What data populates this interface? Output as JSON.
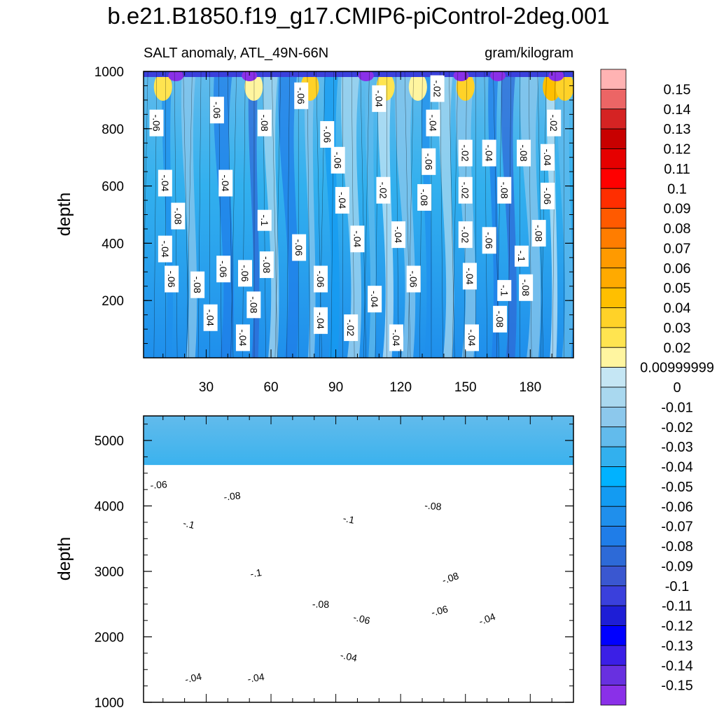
{
  "title": "b.e21.B1850.f19_g17.CMIP6-piControl-2deg.001",
  "chart_data": {
    "type": "heatmap",
    "variable": "SALT anomaly, ATL_49N-66N",
    "units": "gram/kilogram",
    "x_ticks": [
      30,
      60,
      90,
      120,
      150,
      180
    ],
    "xlim": [
      1,
      200
    ],
    "panels": [
      {
        "id": "upper",
        "ylabel": "depth",
        "ylim": [
          1000,
          0
        ],
        "y_ticks": [
          200,
          400,
          600,
          800,
          1000
        ],
        "contour_labels": [
          {
            "x": 47,
            "y": 70,
            "text": "-.04"
          },
          {
            "x": 32,
            "y": 140,
            "text": "-.04"
          },
          {
            "x": 52,
            "y": 185,
            "text": "-.08"
          },
          {
            "x": 83,
            "y": 130,
            "text": "-.04"
          },
          {
            "x": 97,
            "y": 105,
            "text": "-.02"
          },
          {
            "x": 118,
            "y": 70,
            "text": "-.04"
          },
          {
            "x": 108,
            "y": 205,
            "text": "-.04"
          },
          {
            "x": 153,
            "y": 70,
            "text": "-.04"
          },
          {
            "x": 166,
            "y": 135,
            "text": "-.08"
          },
          {
            "x": 14,
            "y": 275,
            "text": "-.06"
          },
          {
            "x": 26,
            "y": 255,
            "text": "-.08"
          },
          {
            "x": 38,
            "y": 310,
            "text": "-.06"
          },
          {
            "x": 48,
            "y": 295,
            "text": "-.06"
          },
          {
            "x": 58,
            "y": 325,
            "text": "-.08"
          },
          {
            "x": 83,
            "y": 275,
            "text": "-.06"
          },
          {
            "x": 126,
            "y": 275,
            "text": "-.06"
          },
          {
            "x": 152,
            "y": 285,
            "text": "-.04"
          },
          {
            "x": 168,
            "y": 235,
            "text": "-.1"
          },
          {
            "x": 178,
            "y": 245,
            "text": "-.08"
          },
          {
            "x": 11,
            "y": 380,
            "text": "-.04"
          },
          {
            "x": 73,
            "y": 385,
            "text": "-.06"
          },
          {
            "x": 100,
            "y": 415,
            "text": "-.04"
          },
          {
            "x": 119,
            "y": 430,
            "text": "-.04"
          },
          {
            "x": 176,
            "y": 355,
            "text": "-.1"
          },
          {
            "x": 150,
            "y": 430,
            "text": "-.02"
          },
          {
            "x": 161,
            "y": 410,
            "text": "-.06"
          },
          {
            "x": 184,
            "y": 435,
            "text": "-.08"
          },
          {
            "x": 17,
            "y": 495,
            "text": "-.08"
          },
          {
            "x": 57,
            "y": 480,
            "text": "-.1"
          },
          {
            "x": 93,
            "y": 550,
            "text": "-.04"
          },
          {
            "x": 131,
            "y": 560,
            "text": "-.08"
          },
          {
            "x": 112,
            "y": 585,
            "text": "-.02"
          },
          {
            "x": 150,
            "y": 585,
            "text": "-.02"
          },
          {
            "x": 168,
            "y": 585,
            "text": "-.08"
          },
          {
            "x": 188,
            "y": 565,
            "text": "-.06"
          },
          {
            "x": 11,
            "y": 610,
            "text": "-.04"
          },
          {
            "x": 39,
            "y": 610,
            "text": "-.04"
          },
          {
            "x": 91,
            "y": 690,
            "text": "-.06"
          },
          {
            "x": 133,
            "y": 685,
            "text": "-.06"
          },
          {
            "x": 150,
            "y": 715,
            "text": "-.02"
          },
          {
            "x": 161,
            "y": 715,
            "text": "-.04"
          },
          {
            "x": 177,
            "y": 715,
            "text": "-.08"
          },
          {
            "x": 188,
            "y": 700,
            "text": "-.04"
          },
          {
            "x": 7,
            "y": 820,
            "text": "-.06"
          },
          {
            "x": 57,
            "y": 820,
            "text": "-.08"
          },
          {
            "x": 86,
            "y": 780,
            "text": "-.06"
          },
          {
            "x": 135,
            "y": 820,
            "text": "-.04"
          },
          {
            "x": 191,
            "y": 820,
            "text": "-.02"
          },
          {
            "x": 35,
            "y": 865,
            "text": "-.06"
          },
          {
            "x": 74,
            "y": 915,
            "text": "-.06"
          },
          {
            "x": 110,
            "y": 905,
            "text": "-.04"
          },
          {
            "x": 137,
            "y": 940,
            "text": "-.02"
          }
        ]
      },
      {
        "id": "lower",
        "ylabel": "depth",
        "ylim": [
          5375,
          1000
        ],
        "y_ticks": [
          1000,
          2000,
          3000,
          4000,
          5000
        ],
        "data_bottom_depth": 4625,
        "contour_labels": [
          {
            "x": 24,
            "y": 1375,
            "text": "-.04"
          },
          {
            "x": 53,
            "y": 1375,
            "text": "-.04"
          },
          {
            "x": 96,
            "y": 1700,
            "text": "-.04"
          },
          {
            "x": 102,
            "y": 2275,
            "text": "-.06"
          },
          {
            "x": 83,
            "y": 2500,
            "text": "-.08"
          },
          {
            "x": 138,
            "y": 2400,
            "text": "-.06"
          },
          {
            "x": 160,
            "y": 2275,
            "text": "-.04"
          },
          {
            "x": 143,
            "y": 2900,
            "text": "-.08"
          },
          {
            "x": 53,
            "y": 2975,
            "text": "-.1"
          },
          {
            "x": 22,
            "y": 3725,
            "text": "-.1"
          },
          {
            "x": 96,
            "y": 3800,
            "text": "-.1"
          },
          {
            "x": 135,
            "y": 4000,
            "text": "-.08"
          },
          {
            "x": 42,
            "y": 4150,
            "text": "-.08"
          },
          {
            "x": 8,
            "y": 4325,
            "text": "-.06"
          }
        ]
      }
    ],
    "colorbar": {
      "levels": [
        "0.15",
        "0.14",
        "0.13",
        "0.12",
        "0.11",
        "0.1",
        "0.09",
        "0.08",
        "0.07",
        "0.06",
        "0.05",
        "0.04",
        "0.03",
        "0.02",
        "0.00999999",
        "0",
        "-0.01",
        "-0.02",
        "-0.03",
        "-0.04",
        "-0.05",
        "-0.06",
        "-0.07",
        "-0.08",
        "-0.09",
        "-0.1",
        "-0.11",
        "-0.12",
        "-0.13",
        "-0.14",
        "-0.15"
      ],
      "colors": [
        "#ffb3b3",
        "#ec6565",
        "#d52323",
        "#c80000",
        "#e60000",
        "#ff0000",
        "#ff2e00",
        "#ff5a00",
        "#ff7d00",
        "#ff9a00",
        "#ffaa00",
        "#ffbf00",
        "#ffd228",
        "#ffe450",
        "#fff5a0",
        "#c5e6f4",
        "#a9d8ef",
        "#8cc8ec",
        "#62bbec",
        "#32b0ee",
        "#00b2ff",
        "#139bf2",
        "#1f8fec",
        "#1f7de8",
        "#2d6ad7",
        "#3a57d0",
        "#3a40dc",
        "#1e1ed6",
        "#0000ff",
        "#3b1fe6",
        "#6830e0",
        "#8a30e8"
      ]
    }
  }
}
